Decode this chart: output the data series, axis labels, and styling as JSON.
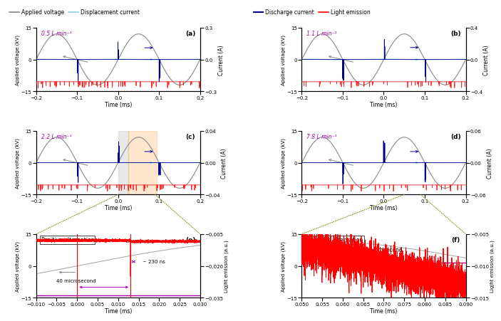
{
  "fig_width": 6.85,
  "fig_height": 4.44,
  "dpi": 100,
  "flow_rates": [
    "0.5 L min⁻¹",
    "1.1 L min⁻¹",
    "2.2 L min⁻¹",
    "7.8 L min⁻¹"
  ],
  "time_main_lim": [
    -0.2,
    0.2
  ],
  "time_e_lim": [
    -0.01,
    0.03
  ],
  "time_f_lim": [
    0.05,
    0.09
  ],
  "voltage_ylim": [
    -15,
    15
  ],
  "voltage_yticks": [
    -15,
    0,
    15
  ],
  "current_ylim_a": [
    -0.3,
    0.3
  ],
  "current_yticks_a": [
    -0.3,
    0.0,
    0.3
  ],
  "current_ylim_b": [
    -0.4,
    0.4
  ],
  "current_yticks_b": [
    -0.4,
    0.0,
    0.4
  ],
  "current_ylim_c": [
    -0.04,
    0.04
  ],
  "current_yticks_c": [
    -0.04,
    0.0,
    0.04
  ],
  "current_ylim_d": [
    -0.06,
    0.06
  ],
  "current_yticks_d": [
    -0.06,
    0.0,
    0.06
  ],
  "light_ylim_e": [
    -0.035,
    -0.005
  ],
  "light_yticks_e": [
    -0.035,
    -0.02,
    -0.005
  ],
  "light_ylim_f": [
    -0.015,
    -0.005
  ],
  "light_yticks_f": [
    -0.015,
    -0.01,
    -0.005
  ],
  "colors": {
    "applied_voltage": "#888888",
    "displacement_current": "#87CEEB",
    "discharge_current": "#00008B",
    "light_emission_weak": "#FFB0B0",
    "light_emission_strong": "#FF0000",
    "purple": "#AA00AA",
    "orange_shade": "#FFA040",
    "gray_shade": "#AAAAAA",
    "olive_dot": "#808000"
  },
  "legend_labels": [
    "Applied voltage",
    "Displacement current",
    "Discharge current",
    "Light emission"
  ],
  "xlabel": "Time (ms)",
  "ylabel_voltage": "Applied voltage (kV)",
  "ylabel_current": "Current (A)",
  "ylabel_light": "Ligjht emission (a.u.)",
  "panel_e_title": "Positive alternation",
  "panel_f_title": "Negative alternation",
  "annot_230ns": "~ 230 ns",
  "annot_40us_e": "40 microsecond",
  "annot_40us_f": "40 microsecond",
  "voltage_freq_khz": 5.0,
  "voltage_amp_kv": 12.0
}
